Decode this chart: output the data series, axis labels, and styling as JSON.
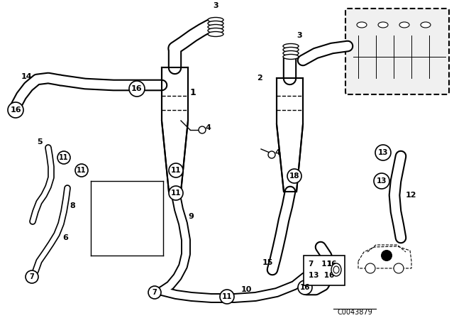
{
  "bg_color": "#ffffff",
  "line_color": "#000000",
  "diagram_code": "C0043879",
  "fig_width": 6.4,
  "fig_height": 4.48,
  "dpi": 100
}
